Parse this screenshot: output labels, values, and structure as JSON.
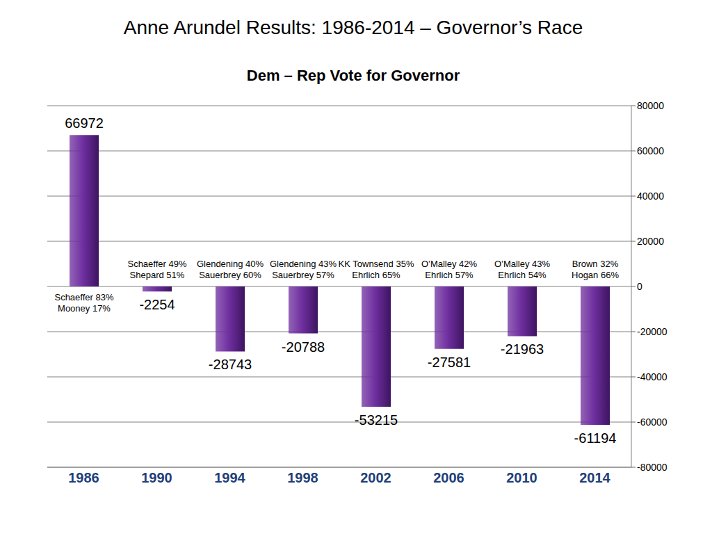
{
  "chart_data": {
    "type": "bar",
    "title": "Anne Arundel Results: 1986-2014 – Governor’s Race",
    "subtitle": "Dem – Rep Vote for Governor",
    "categories": [
      "1986",
      "1990",
      "1994",
      "1998",
      "2002",
      "2006",
      "2010",
      "2014"
    ],
    "values": [
      66972,
      -2254,
      -28743,
      -20788,
      -53215,
      -27581,
      -21963,
      -61194
    ],
    "color": "#7030a0",
    "ylim": [
      -80000,
      80000
    ],
    "yticks": [
      -80000,
      -60000,
      -40000,
      -20000,
      0,
      20000,
      40000,
      60000,
      80000
    ],
    "grid": true,
    "data_labels": true,
    "annotations": [
      [
        "Schaeffer 83%",
        "Mooney 17%"
      ],
      [
        "Schaeffer 49%",
        "Shepard 51%"
      ],
      [
        "Glendening 40%",
        "Sauerbrey 60%"
      ],
      [
        "Glendening 43%",
        "Sauerbrey 57%"
      ],
      [
        "KK Townsend 35%",
        "Ehrlich 65%"
      ],
      [
        "O’Malley 42%",
        "Ehrlich 57%"
      ],
      [
        "O’Malley 43%",
        "Ehrlich 54%"
      ],
      [
        "Brown 32%",
        "Hogan 66%"
      ]
    ]
  }
}
